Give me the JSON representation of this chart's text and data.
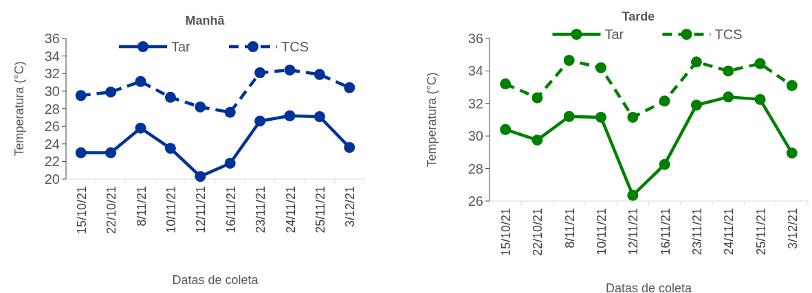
{
  "chart_data": [
    {
      "type": "line",
      "title": "Manhã",
      "xlabel": "Datas de coleta",
      "ylabel": "Temperatura (°C)",
      "categories": [
        "15/10/21",
        "22/10/21",
        "8/11/21",
        "10/11/21",
        "12/11/21",
        "16/11/21",
        "23/11/21",
        "24/11/21",
        "25/11/21",
        "3/12/21"
      ],
      "ylim": [
        20,
        36
      ],
      "yticks": [
        20,
        22,
        24,
        26,
        28,
        30,
        32,
        34,
        36
      ],
      "legend": "top",
      "marker": "circle",
      "grid": false,
      "series": [
        {
          "name": "Tar",
          "color": "#003399",
          "line_style": "solid",
          "values": [
            23.0,
            23.0,
            25.8,
            23.5,
            20.3,
            21.8,
            26.6,
            27.2,
            27.1,
            23.6
          ]
        },
        {
          "name": "TCS",
          "color": "#003399",
          "line_style": "dashed",
          "values": [
            29.5,
            29.9,
            31.1,
            29.3,
            28.2,
            27.6,
            32.1,
            32.4,
            31.9,
            30.4
          ]
        }
      ]
    },
    {
      "type": "line",
      "title": "Tarde",
      "xlabel": "Datas de coleta",
      "ylabel": "Temperatura (°C)",
      "categories": [
        "15/10/21",
        "22/10/21",
        "8/11/21",
        "10/11/21",
        "12/11/21",
        "16/11/21",
        "23/11/21",
        "24/11/21",
        "25/11/21",
        "3/12/21"
      ],
      "ylim": [
        26,
        36
      ],
      "yticks": [
        26,
        28,
        30,
        32,
        34,
        36
      ],
      "legend": "top",
      "marker": "circle",
      "grid": false,
      "series": [
        {
          "name": "Tar",
          "color": "#008000",
          "line_style": "solid",
          "values": [
            30.4,
            29.75,
            31.2,
            31.15,
            26.35,
            28.25,
            31.9,
            32.4,
            32.25,
            28.95
          ]
        },
        {
          "name": "TCS",
          "color": "#008000",
          "line_style": "dashed",
          "values": [
            33.2,
            32.35,
            34.65,
            34.2,
            31.15,
            32.15,
            34.55,
            34.0,
            34.45,
            33.1
          ]
        }
      ]
    }
  ]
}
